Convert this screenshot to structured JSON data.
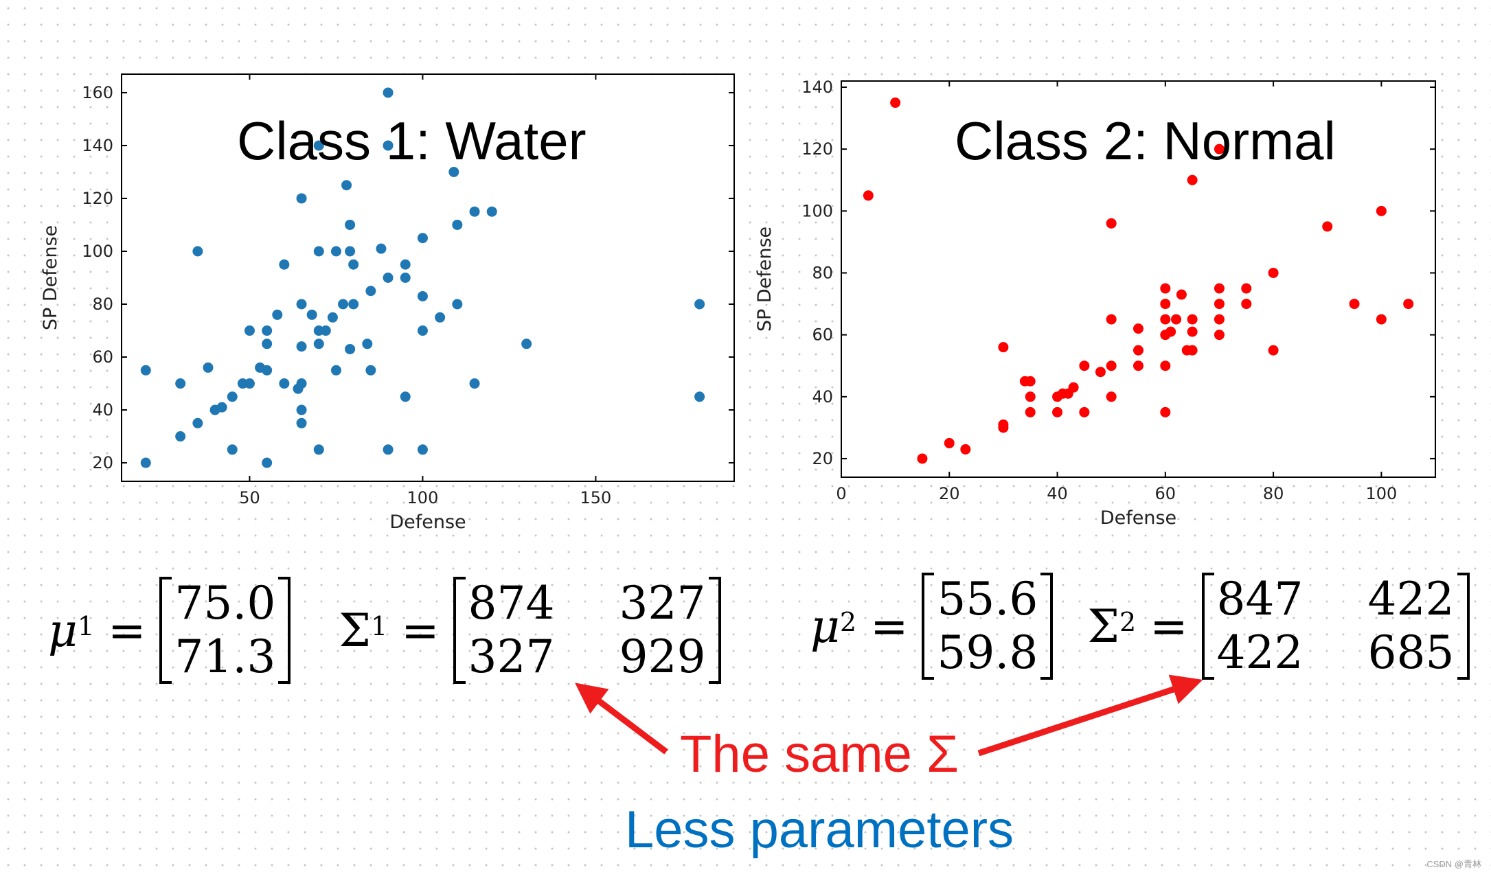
{
  "colors": {
    "class1_marker": "#1f77b4",
    "class2_marker": "#ff0000",
    "annotation_red": "#ee1c1c",
    "annotation_blue": "#0070c0"
  },
  "chart_data": [
    {
      "type": "scatter",
      "title": "Class 1: Water",
      "xlabel": "Defense",
      "ylabel": "SP Defense",
      "xlim": [
        13,
        190
      ],
      "ylim": [
        13,
        167
      ],
      "xticks": [
        50,
        100,
        150
      ],
      "yticks": [
        20,
        40,
        60,
        80,
        100,
        120,
        140,
        160
      ],
      "grid": false,
      "color": "#1f77b4",
      "points": [
        [
          20,
          55
        ],
        [
          20,
          20
        ],
        [
          30,
          50
        ],
        [
          30,
          30
        ],
        [
          35,
          100
        ],
        [
          35,
          35
        ],
        [
          38,
          56
        ],
        [
          40,
          40
        ],
        [
          42,
          41
        ],
        [
          45,
          25
        ],
        [
          45,
          45
        ],
        [
          48,
          50
        ],
        [
          50,
          70
        ],
        [
          50,
          50
        ],
        [
          53,
          56
        ],
        [
          55,
          20
        ],
        [
          55,
          55
        ],
        [
          55,
          65
        ],
        [
          55,
          70
        ],
        [
          58,
          76
        ],
        [
          60,
          95
        ],
        [
          60,
          50
        ],
        [
          64,
          48
        ],
        [
          65,
          40
        ],
        [
          65,
          50
        ],
        [
          65,
          35
        ],
        [
          65,
          64
        ],
        [
          65,
          80
        ],
        [
          65,
          120
        ],
        [
          68,
          76
        ],
        [
          70,
          140
        ],
        [
          70,
          100
        ],
        [
          70,
          70
        ],
        [
          70,
          65
        ],
        [
          70,
          25
        ],
        [
          72,
          70
        ],
        [
          74,
          75
        ],
        [
          75,
          100
        ],
        [
          75,
          55
        ],
        [
          77,
          80
        ],
        [
          78,
          125
        ],
        [
          79,
          100
        ],
        [
          79,
          110
        ],
        [
          80,
          95
        ],
        [
          80,
          80
        ],
        [
          79,
          63
        ],
        [
          84,
          65
        ],
        [
          85,
          85
        ],
        [
          85,
          55
        ],
        [
          88,
          101
        ],
        [
          90,
          160
        ],
        [
          90,
          140
        ],
        [
          90,
          90
        ],
        [
          90,
          25
        ],
        [
          95,
          95
        ],
        [
          95,
          90
        ],
        [
          95,
          45
        ],
        [
          100,
          105
        ],
        [
          100,
          83
        ],
        [
          100,
          70
        ],
        [
          100,
          25
        ],
        [
          105,
          75
        ],
        [
          109,
          130
        ],
        [
          110,
          110
        ],
        [
          110,
          80
        ],
        [
          115,
          115
        ],
        [
          115,
          50
        ],
        [
          120,
          115
        ],
        [
          130,
          65
        ],
        [
          180,
          80
        ],
        [
          180,
          45
        ]
      ],
      "mean_label": "μ",
      "mean_sup": "1",
      "mean": [
        "75.0",
        "71.3"
      ],
      "cov_label": "Σ",
      "cov_sup": "1",
      "cov": [
        [
          "874",
          "327"
        ],
        [
          "327",
          "929"
        ]
      ]
    },
    {
      "type": "scatter",
      "title": "Class 2: Normal",
      "xlabel": "Defense",
      "ylabel": "SP Defense",
      "xlim": [
        0,
        110
      ],
      "ylim": [
        14,
        142
      ],
      "xticks": [
        0,
        20,
        40,
        60,
        80,
        100
      ],
      "yticks": [
        20,
        40,
        60,
        80,
        100,
        120,
        140
      ],
      "grid": false,
      "color": "#ff0000",
      "points": [
        [
          5,
          105
        ],
        [
          10,
          135
        ],
        [
          15,
          20
        ],
        [
          20,
          25
        ],
        [
          23,
          23
        ],
        [
          30,
          56
        ],
        [
          30,
          30
        ],
        [
          30,
          31
        ],
        [
          34,
          45
        ],
        [
          35,
          45
        ],
        [
          35,
          40
        ],
        [
          35,
          35
        ],
        [
          40,
          40
        ],
        [
          40,
          35
        ],
        [
          41,
          41
        ],
        [
          42,
          41
        ],
        [
          43,
          43
        ],
        [
          45,
          50
        ],
        [
          45,
          35
        ],
        [
          48,
          48
        ],
        [
          50,
          96
        ],
        [
          50,
          65
        ],
        [
          50,
          50
        ],
        [
          50,
          40
        ],
        [
          55,
          62
        ],
        [
          55,
          55
        ],
        [
          55,
          50
        ],
        [
          60,
          75
        ],
        [
          60,
          70
        ],
        [
          60,
          65
        ],
        [
          60,
          60
        ],
        [
          60,
          50
        ],
        [
          60,
          35
        ],
        [
          61,
          61
        ],
        [
          62,
          65
        ],
        [
          63,
          73
        ],
        [
          64,
          55
        ],
        [
          65,
          110
        ],
        [
          65,
          65
        ],
        [
          65,
          61
        ],
        [
          65,
          55
        ],
        [
          70,
          120
        ],
        [
          70,
          75
        ],
        [
          70,
          70
        ],
        [
          70,
          65
        ],
        [
          70,
          60
        ],
        [
          75,
          75
        ],
        [
          75,
          70
        ],
        [
          80,
          80
        ],
        [
          80,
          55
        ],
        [
          90,
          95
        ],
        [
          95,
          70
        ],
        [
          100,
          100
        ],
        [
          100,
          65
        ],
        [
          105,
          70
        ]
      ],
      "mean_label": "μ",
      "mean_sup": "2",
      "mean": [
        "55.6",
        "59.8"
      ],
      "cov_label": "Σ",
      "cov_sup": "2",
      "cov": [
        [
          "847",
          "422"
        ],
        [
          "422",
          "685"
        ]
      ]
    }
  ],
  "annotations": {
    "same_sigma": "The same Σ",
    "less_params": "Less parameters"
  },
  "watermark": "CSDN @青林"
}
